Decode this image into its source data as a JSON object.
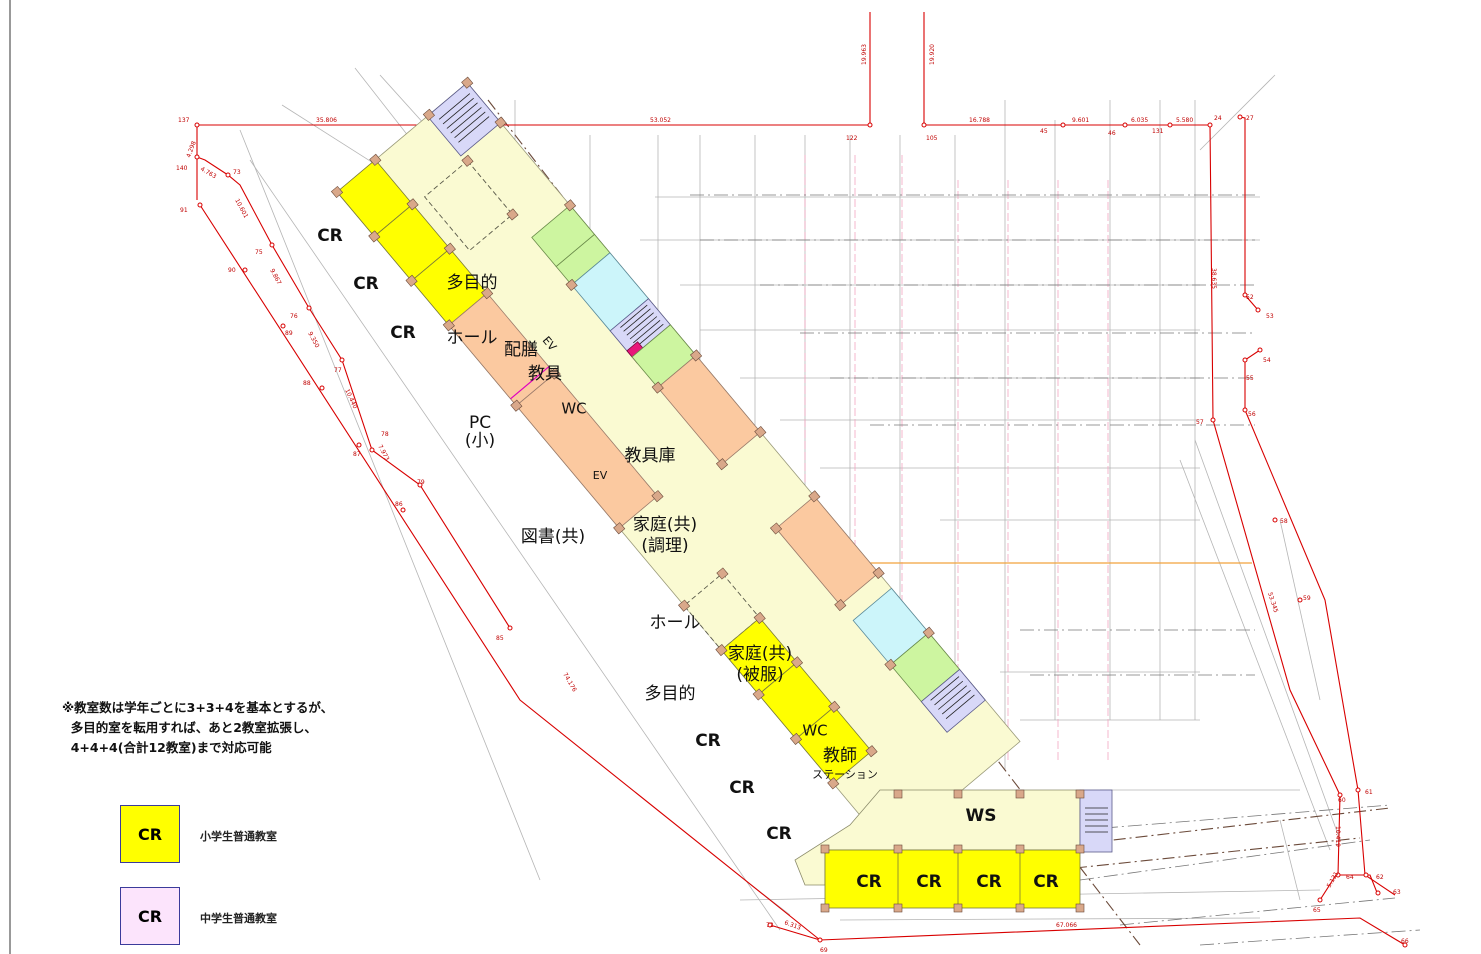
{
  "colors": {
    "elementary_classroom": "#ffff00",
    "junior_high_classroom": "#fce4fc",
    "corridor": "#fafad2",
    "special_room": "#fbc9a0",
    "toilet": "#ccf5fa",
    "service": "#cdf5a0",
    "stair": "#d8d8f8",
    "elevator": "#e8167a",
    "survey_line": "#d80000"
  },
  "rooms": {
    "cr": "CR",
    "multipurpose": "多目的",
    "hall": "ホール",
    "haizen": "配膳",
    "ev": "EV",
    "kyogu": "教具",
    "wc": "WC",
    "kyoguko": "教具庫",
    "pc_line1": "PC",
    "pc_line2": "(小)",
    "library": "図書(共)",
    "home_cook_line1": "家庭(共)",
    "home_cook_line2": "(調理)",
    "home_sew_line1": "家庭(共)",
    "home_sew_line2": "(被服)",
    "teacher_line1": "教師",
    "teacher_line2": "ステーション",
    "ws": "WS"
  },
  "survey_points": [
    "137",
    "139",
    "122",
    "105",
    "45",
    "46",
    "131",
    "24",
    "27",
    "140",
    "73",
    "91",
    "75",
    "90",
    "76",
    "89",
    "77",
    "88",
    "78",
    "87",
    "79",
    "86",
    "85",
    "52",
    "53",
    "54",
    "55",
    "56",
    "57",
    "58",
    "59",
    "60",
    "61",
    "62",
    "63",
    "64",
    "65",
    "66",
    "72",
    "69"
  ],
  "survey_distances": [
    "35.806",
    "53.052",
    "16.788",
    "9.601",
    "6.035",
    "5.580",
    "19.963",
    "19.920",
    "4.298",
    "4.763",
    "10.601",
    "9.867",
    "9.350",
    "10.440",
    "7.973",
    "38.635",
    "53.345",
    "10.419",
    "5.131",
    "6.313",
    "67.066",
    "74.176"
  ],
  "note": {
    "line1": "※教室数は学年ごとに3+3+4を基本とするが、",
    "line2": "  多目的室を転用すれば、あと2教室拡張し、",
    "line3": "  4+4+4(合計12教室)まで対応可能"
  },
  "legend": {
    "elementary_box": "CR",
    "elementary_label": "小学生普通教室",
    "junior_box": "CR",
    "junior_label": "中学生普通教室"
  }
}
